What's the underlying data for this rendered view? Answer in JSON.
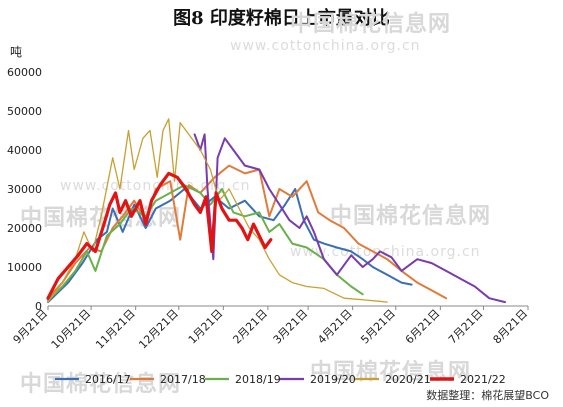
{
  "title": "图8 印度籽棉日上市量对比",
  "source": "数据整理：棉花展望BCO",
  "watermarks": [
    "中国棉花信息网",
    "www.cottonchina.org.cn"
  ],
  "chart_data": {
    "type": "line",
    "ylabel": "吨",
    "ylim": [
      0,
      60000
    ],
    "yticks": [
      "0",
      "10000",
      "20000",
      "30000",
      "40000",
      "50000",
      "60000"
    ],
    "x_range": [
      "09-21",
      "08-21"
    ],
    "xticks": [
      "9月21日",
      "10月21日",
      "11月21日",
      "12月21日",
      "1月21日",
      "2月21日",
      "3月21日",
      "4月21日",
      "5月21日",
      "6月21日",
      "7月21日",
      "8月21日"
    ],
    "legend_position": "bottom",
    "series": [
      {
        "name": "2016/17",
        "color": "#3a6fb5",
        "width": 2,
        "points": [
          [
            "09-21",
            1000
          ],
          [
            "10-05",
            6000
          ],
          [
            "10-15",
            11000
          ],
          [
            "10-25",
            17000
          ],
          [
            "11-01",
            19000
          ],
          [
            "11-05",
            25000
          ],
          [
            "11-12",
            19000
          ],
          [
            "11-20",
            26000
          ],
          [
            "11-28",
            20000
          ],
          [
            "12-05",
            25000
          ],
          [
            "12-15",
            27000
          ],
          [
            "12-25",
            30000
          ],
          [
            "01-05",
            25000
          ],
          [
            "01-15",
            28000
          ],
          [
            "01-25",
            25000
          ],
          [
            "02-05",
            27000
          ],
          [
            "02-15",
            23000
          ],
          [
            "02-25",
            22000
          ],
          [
            "03-05",
            26000
          ],
          [
            "03-12",
            30000
          ],
          [
            "03-18",
            22000
          ],
          [
            "03-25",
            17000
          ],
          [
            "04-01",
            16000
          ],
          [
            "04-10",
            15000
          ],
          [
            "04-20",
            14000
          ],
          [
            "04-28",
            12000
          ],
          [
            "05-05",
            10000
          ],
          [
            "05-15",
            8000
          ],
          [
            "05-25",
            6000
          ],
          [
            "06-01",
            5500
          ]
        ]
      },
      {
        "name": "2017/18",
        "color": "#e07b39",
        "width": 2,
        "points": [
          [
            "09-21",
            2000
          ],
          [
            "10-01",
            6000
          ],
          [
            "10-10",
            11000
          ],
          [
            "10-20",
            15000
          ],
          [
            "10-28",
            14000
          ],
          [
            "11-05",
            20000
          ],
          [
            "11-12",
            23000
          ],
          [
            "11-20",
            27000
          ],
          [
            "11-28",
            22000
          ],
          [
            "12-05",
            30000
          ],
          [
            "12-15",
            32000
          ],
          [
            "12-22",
            17000
          ],
          [
            "12-28",
            31000
          ],
          [
            "01-05",
            29000
          ],
          [
            "01-15",
            33000
          ],
          [
            "01-25",
            36000
          ],
          [
            "02-05",
            34000
          ],
          [
            "02-15",
            35000
          ],
          [
            "02-22",
            23000
          ],
          [
            "03-01",
            30000
          ],
          [
            "03-10",
            28000
          ],
          [
            "03-20",
            32000
          ],
          [
            "03-28",
            24000
          ],
          [
            "04-05",
            22000
          ],
          [
            "04-15",
            20000
          ],
          [
            "04-25",
            16000
          ],
          [
            "05-05",
            14000
          ],
          [
            "05-15",
            12000
          ],
          [
            "05-25",
            9000
          ],
          [
            "06-05",
            6000
          ],
          [
            "06-15",
            4000
          ],
          [
            "06-25",
            2000
          ]
        ]
      },
      {
        "name": "2018/19",
        "color": "#6ab04c",
        "width": 2,
        "points": [
          [
            "09-21",
            1500
          ],
          [
            "10-01",
            5000
          ],
          [
            "10-10",
            9000
          ],
          [
            "10-18",
            14000
          ],
          [
            "10-24",
            9000
          ],
          [
            "11-01",
            18000
          ],
          [
            "11-10",
            21000
          ],
          [
            "11-18",
            25000
          ],
          [
            "11-28",
            23000
          ],
          [
            "12-05",
            27000
          ],
          [
            "12-15",
            29000
          ],
          [
            "12-25",
            31000
          ],
          [
            "01-05",
            29000
          ],
          [
            "01-12",
            26000
          ],
          [
            "01-20",
            30000
          ],
          [
            "01-28",
            24000
          ],
          [
            "02-05",
            23000
          ],
          [
            "02-15",
            24000
          ],
          [
            "02-22",
            19000
          ],
          [
            "03-01",
            21000
          ],
          [
            "03-10",
            16000
          ],
          [
            "03-20",
            15000
          ],
          [
            "04-01",
            12000
          ],
          [
            "04-10",
            8000
          ],
          [
            "04-20",
            5000
          ],
          [
            "04-28",
            3000
          ]
        ]
      },
      {
        "name": "2019/20",
        "color": "#7a3ab0",
        "width": 2,
        "points": [
          [
            "01-01",
            44000
          ],
          [
            "01-05",
            40000
          ],
          [
            "01-08",
            44000
          ],
          [
            "01-10",
            30000
          ],
          [
            "01-14",
            12000
          ],
          [
            "01-17",
            38000
          ],
          [
            "01-22",
            43000
          ],
          [
            "01-28",
            40000
          ],
          [
            "02-05",
            36000
          ],
          [
            "02-15",
            35000
          ],
          [
            "02-22",
            30000
          ],
          [
            "03-01",
            26000
          ],
          [
            "03-08",
            22000
          ],
          [
            "03-15",
            20000
          ],
          [
            "03-20",
            23000
          ],
          [
            "03-25",
            19000
          ],
          [
            "04-01",
            12000
          ],
          [
            "04-10",
            8000
          ],
          [
            "04-20",
            13000
          ],
          [
            "04-28",
            10000
          ],
          [
            "05-05",
            12000
          ],
          [
            "05-10",
            14000
          ],
          [
            "05-18",
            12500
          ],
          [
            "05-25",
            9000
          ],
          [
            "06-05",
            12000
          ],
          [
            "06-15",
            11000
          ],
          [
            "06-25",
            9000
          ],
          [
            "07-05",
            7000
          ],
          [
            "07-15",
            5000
          ],
          [
            "07-25",
            2000
          ],
          [
            "08-05",
            1000
          ]
        ]
      },
      {
        "name": "2020/21",
        "color": "#c8a032",
        "width": 1.3,
        "points": [
          [
            "09-21",
            1000
          ],
          [
            "10-01",
            6000
          ],
          [
            "10-10",
            12000
          ],
          [
            "10-16",
            19000
          ],
          [
            "10-22",
            14000
          ],
          [
            "10-28",
            23000
          ],
          [
            "11-05",
            38000
          ],
          [
            "11-10",
            30000
          ],
          [
            "11-16",
            45000
          ],
          [
            "11-20",
            35000
          ],
          [
            "11-26",
            43000
          ],
          [
            "12-01",
            45000
          ],
          [
            "12-06",
            33000
          ],
          [
            "12-10",
            45000
          ],
          [
            "12-14",
            48000
          ],
          [
            "12-18",
            32000
          ],
          [
            "12-22",
            47000
          ],
          [
            "12-28",
            44000
          ],
          [
            "01-05",
            40000
          ],
          [
            "01-12",
            35000
          ],
          [
            "01-18",
            27000
          ],
          [
            "01-25",
            30000
          ],
          [
            "02-01",
            25000
          ],
          [
            "02-08",
            20000
          ],
          [
            "02-15",
            17000
          ],
          [
            "02-22",
            12000
          ],
          [
            "03-01",
            8000
          ],
          [
            "03-10",
            6000
          ],
          [
            "03-20",
            5000
          ],
          [
            "04-01",
            4500
          ],
          [
            "04-15",
            2000
          ],
          [
            "05-01",
            1500
          ],
          [
            "05-15",
            1000
          ]
        ]
      },
      {
        "name": "2021/22",
        "color": "#e01414",
        "width": 3.2,
        "points": [
          [
            "09-21",
            2000
          ],
          [
            "09-28",
            7000
          ],
          [
            "10-05",
            10000
          ],
          [
            "10-12",
            13000
          ],
          [
            "10-18",
            16000
          ],
          [
            "10-24",
            14000
          ],
          [
            "10-30",
            21000
          ],
          [
            "11-03",
            26000
          ],
          [
            "11-07",
            29000
          ],
          [
            "11-10",
            24000
          ],
          [
            "11-14",
            27000
          ],
          [
            "11-18",
            23000
          ],
          [
            "11-24",
            27000
          ],
          [
            "11-28",
            21000
          ],
          [
            "12-02",
            27000
          ],
          [
            "12-08",
            31000
          ],
          [
            "12-14",
            34000
          ],
          [
            "12-20",
            33000
          ],
          [
            "12-26",
            30000
          ],
          [
            "01-01",
            26000
          ],
          [
            "01-05",
            24000
          ],
          [
            "01-09",
            28000
          ],
          [
            "01-13",
            14000
          ],
          [
            "01-16",
            29000
          ],
          [
            "01-20",
            25000
          ],
          [
            "01-25",
            22000
          ],
          [
            "01-30",
            22000
          ],
          [
            "02-03",
            20000
          ],
          [
            "02-07",
            17000
          ],
          [
            "02-11",
            21000
          ],
          [
            "02-15",
            18000
          ],
          [
            "02-19",
            15000
          ],
          [
            "02-23",
            17000
          ]
        ]
      }
    ]
  }
}
